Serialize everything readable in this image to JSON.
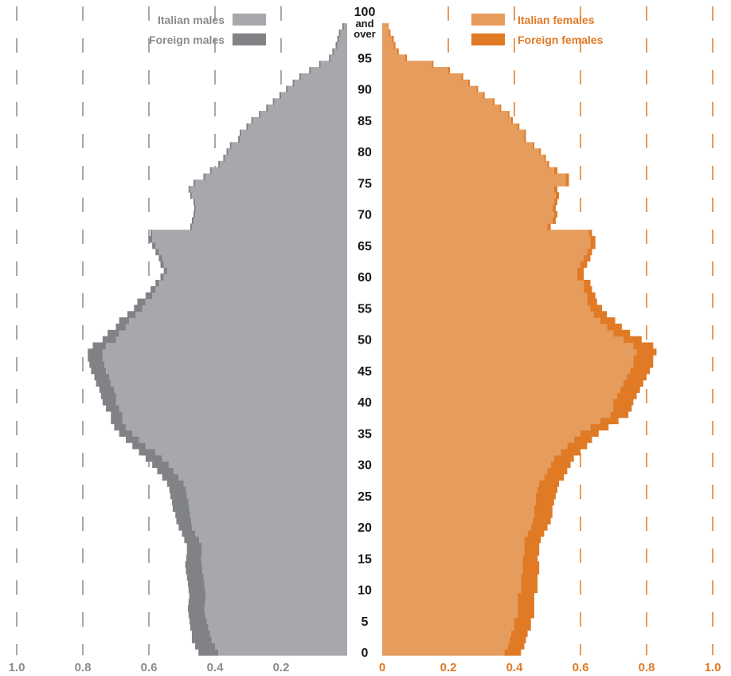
{
  "chart_data": {
    "type": "population-pyramid",
    "x_unit": "percent of population",
    "xlim": [
      0,
      1.0
    ],
    "x_ticks": {
      "left": [
        "1.0",
        "0.8",
        "0.6",
        "0.4",
        "0.2"
      ],
      "right": [
        "0",
        "0.2",
        "0.4",
        "0.6",
        "0.8",
        "1.0"
      ]
    },
    "tick_values_left": [
      1.0,
      0.8,
      0.6,
      0.4,
      0.2
    ],
    "tick_values_right": [
      0,
      0.2,
      0.4,
      0.6,
      0.8,
      1.0
    ],
    "grid": "dashed vertical lines",
    "age_labels": [
      {
        "age": 0,
        "label": "0"
      },
      {
        "age": 5,
        "label": "5"
      },
      {
        "age": 10,
        "label": "10"
      },
      {
        "age": 15,
        "label": "15"
      },
      {
        "age": 20,
        "label": "20"
      },
      {
        "age": 25,
        "label": "25"
      },
      {
        "age": 30,
        "label": "30"
      },
      {
        "age": 35,
        "label": "35"
      },
      {
        "age": 40,
        "label": "40"
      },
      {
        "age": 45,
        "label": "45"
      },
      {
        "age": 50,
        "label": "50"
      },
      {
        "age": 55,
        "label": "55"
      },
      {
        "age": 60,
        "label": "60"
      },
      {
        "age": 65,
        "label": "65"
      },
      {
        "age": 70,
        "label": "70"
      },
      {
        "age": 75,
        "label": "75"
      },
      {
        "age": 80,
        "label": "80"
      },
      {
        "age": 85,
        "label": "85"
      },
      {
        "age": 90,
        "label": "90"
      },
      {
        "age": 95,
        "label": "95"
      }
    ],
    "top_age_label": [
      "100",
      "and",
      "over"
    ],
    "legend": [
      {
        "name": "Italian males",
        "color": "#a7a8ac",
        "side": "left"
      },
      {
        "name": "Foreign males",
        "color": "#808285",
        "side": "left"
      },
      {
        "name": "Italian females",
        "color": "#e59c5c",
        "side": "right"
      },
      {
        "name": "Foreign females",
        "color": "#e07a25",
        "side": "right"
      }
    ],
    "legend_placement": "top",
    "ages": [
      0,
      1,
      2,
      3,
      4,
      5,
      6,
      7,
      8,
      9,
      10,
      11,
      12,
      13,
      14,
      15,
      16,
      17,
      18,
      19,
      20,
      21,
      22,
      23,
      24,
      25,
      26,
      27,
      28,
      29,
      30,
      31,
      32,
      33,
      34,
      35,
      36,
      37,
      38,
      39,
      40,
      41,
      42,
      43,
      44,
      45,
      46,
      47,
      48,
      49,
      50,
      51,
      52,
      53,
      54,
      55,
      56,
      57,
      58,
      59,
      60,
      61,
      62,
      63,
      64,
      65,
      66,
      67,
      68,
      69,
      70,
      71,
      72,
      73,
      74,
      75,
      76,
      77,
      78,
      79,
      80,
      81,
      82,
      83,
      84,
      85,
      86,
      87,
      88,
      89,
      90,
      91,
      92,
      93,
      94,
      95,
      96,
      97,
      98,
      99,
      100
    ],
    "series": [
      {
        "name": "Italian males",
        "values": [
          0.39,
          0.4,
          0.41,
          0.415,
          0.42,
          0.425,
          0.43,
          0.432,
          0.43,
          0.428,
          0.43,
          0.432,
          0.435,
          0.438,
          0.44,
          0.442,
          0.44,
          0.44,
          0.448,
          0.46,
          0.47,
          0.472,
          0.475,
          0.478,
          0.48,
          0.485,
          0.488,
          0.495,
          0.51,
          0.525,
          0.54,
          0.56,
          0.58,
          0.61,
          0.63,
          0.65,
          0.67,
          0.68,
          0.68,
          0.69,
          0.7,
          0.7,
          0.705,
          0.715,
          0.72,
          0.73,
          0.735,
          0.74,
          0.74,
          0.73,
          0.7,
          0.69,
          0.67,
          0.66,
          0.64,
          0.62,
          0.61,
          0.59,
          0.58,
          0.57,
          0.555,
          0.545,
          0.555,
          0.56,
          0.57,
          0.58,
          0.59,
          0.59,
          0.47,
          0.465,
          0.46,
          0.458,
          0.46,
          0.47,
          0.475,
          0.46,
          0.43,
          0.41,
          0.385,
          0.37,
          0.36,
          0.35,
          0.325,
          0.32,
          0.3,
          0.285,
          0.262,
          0.24,
          0.22,
          0.2,
          0.18,
          0.16,
          0.14,
          0.11,
          0.08,
          0.05,
          0.04,
          0.03,
          0.025,
          0.02,
          0.01
        ]
      },
      {
        "name": "Foreign males",
        "values": [
          0.06,
          0.06,
          0.06,
          0.055,
          0.055,
          0.052,
          0.05,
          0.05,
          0.05,
          0.05,
          0.05,
          0.05,
          0.05,
          0.05,
          0.05,
          0.045,
          0.045,
          0.045,
          0.045,
          0.04,
          0.04,
          0.045,
          0.045,
          0.05,
          0.05,
          0.05,
          0.05,
          0.05,
          0.05,
          0.05,
          0.05,
          0.05,
          0.05,
          0.04,
          0.04,
          0.04,
          0.035,
          0.035,
          0.035,
          0.04,
          0.04,
          0.045,
          0.045,
          0.045,
          0.045,
          0.045,
          0.045,
          0.045,
          0.045,
          0.04,
          0.04,
          0.035,
          0.03,
          0.03,
          0.025,
          0.025,
          0.025,
          0.02,
          0.015,
          0.01,
          0.01,
          0.01,
          0.01,
          0.01,
          0.01,
          0.01,
          0.01,
          0.005,
          0.005,
          0.005,
          0.005,
          0.005,
          0.005,
          0.005,
          0.005,
          0.005,
          0.005,
          0.005,
          0.005,
          0.005,
          0.005,
          0.005,
          0.005,
          0.005,
          0.005,
          0.005,
          0.005,
          0.005,
          0.005,
          0.005,
          0.005,
          0.005,
          0.005,
          0.005,
          0.005,
          0.005,
          0.005,
          0.005,
          0.005,
          0.005,
          0.005
        ]
      },
      {
        "name": "Italian females",
        "values": [
          0.37,
          0.38,
          0.385,
          0.39,
          0.4,
          0.4,
          0.41,
          0.41,
          0.41,
          0.41,
          0.42,
          0.42,
          0.42,
          0.425,
          0.425,
          0.425,
          0.43,
          0.43,
          0.43,
          0.44,
          0.45,
          0.455,
          0.46,
          0.46,
          0.465,
          0.465,
          0.47,
          0.475,
          0.49,
          0.5,
          0.51,
          0.52,
          0.54,
          0.56,
          0.58,
          0.6,
          0.63,
          0.66,
          0.69,
          0.7,
          0.7,
          0.71,
          0.72,
          0.73,
          0.74,
          0.75,
          0.76,
          0.76,
          0.77,
          0.76,
          0.73,
          0.7,
          0.68,
          0.66,
          0.64,
          0.63,
          0.62,
          0.62,
          0.61,
          0.61,
          0.59,
          0.59,
          0.6,
          0.61,
          0.62,
          0.63,
          0.63,
          0.625,
          0.5,
          0.515,
          0.52,
          0.515,
          0.52,
          0.525,
          0.52,
          0.555,
          0.555,
          0.52,
          0.5,
          0.49,
          0.475,
          0.455,
          0.43,
          0.43,
          0.41,
          0.39,
          0.38,
          0.355,
          0.335,
          0.305,
          0.285,
          0.26,
          0.24,
          0.2,
          0.15,
          0.07,
          0.045,
          0.035,
          0.03,
          0.02,
          0.02
        ]
      },
      {
        "name": "Foreign females",
        "values": [
          0.05,
          0.05,
          0.05,
          0.05,
          0.05,
          0.05,
          0.05,
          0.05,
          0.05,
          0.05,
          0.05,
          0.05,
          0.05,
          0.05,
          0.05,
          0.045,
          0.045,
          0.045,
          0.05,
          0.05,
          0.05,
          0.055,
          0.055,
          0.055,
          0.055,
          0.06,
          0.06,
          0.06,
          0.06,
          0.06,
          0.06,
          0.06,
          0.06,
          0.06,
          0.055,
          0.055,
          0.055,
          0.055,
          0.055,
          0.055,
          0.06,
          0.06,
          0.06,
          0.06,
          0.06,
          0.06,
          0.06,
          0.06,
          0.06,
          0.06,
          0.055,
          0.05,
          0.045,
          0.045,
          0.04,
          0.035,
          0.03,
          0.025,
          0.025,
          0.02,
          0.02,
          0.02,
          0.02,
          0.02,
          0.015,
          0.015,
          0.015,
          0.01,
          0.01,
          0.01,
          0.01,
          0.01,
          0.01,
          0.01,
          0.01,
          0.01,
          0.01,
          0.01,
          0.005,
          0.005,
          0.005,
          0.005,
          0.005,
          0.005,
          0.005,
          0.005,
          0.005,
          0.005,
          0.005,
          0.005,
          0.005,
          0.005,
          0.005,
          0.005,
          0.005,
          0.005,
          0.005,
          0.005,
          0.005,
          0.005,
          0.0
        ]
      }
    ]
  }
}
